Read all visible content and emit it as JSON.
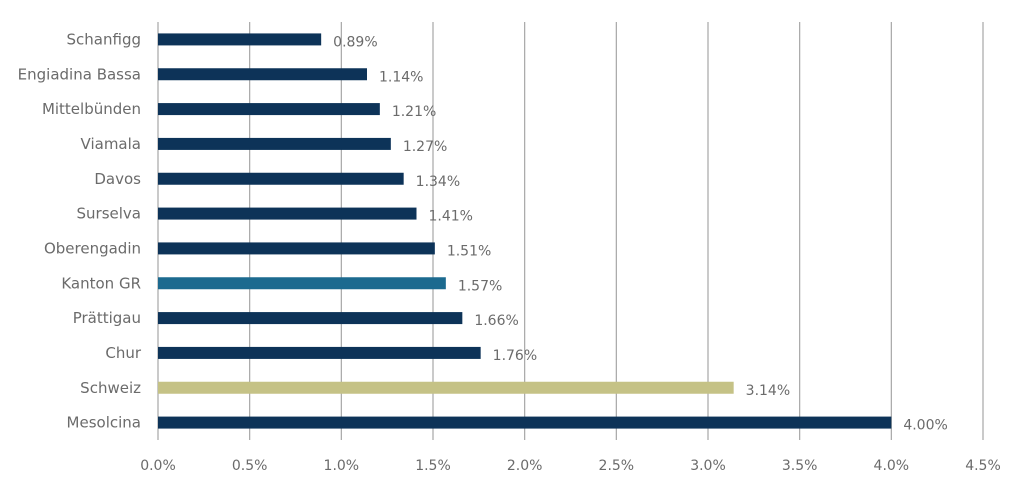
{
  "chart_data": {
    "type": "bar",
    "orientation": "horizontal",
    "categories": [
      "Schanfigg",
      "Engiadina Bassa",
      "Mittelbünden",
      "Viamala",
      "Davos",
      "Surselva",
      "Oberengadin",
      "Kanton GR",
      "Prättigau",
      "Chur",
      "Schweiz",
      "Mesolcina"
    ],
    "values": [
      0.89,
      1.14,
      1.21,
      1.27,
      1.34,
      1.41,
      1.51,
      1.57,
      1.66,
      1.76,
      3.14,
      4.0
    ],
    "value_labels": [
      "0.89%",
      "1.14%",
      "1.21%",
      "1.27%",
      "1.34%",
      "1.41%",
      "1.51%",
      "1.57%",
      "1.66%",
      "1.76%",
      "3.14%",
      "4.00%"
    ],
    "bar_colors": [
      "#0d3358",
      "#0d3358",
      "#0d3358",
      "#0d3358",
      "#0d3358",
      "#0d3358",
      "#0d3358",
      "#1c6a8f",
      "#0d3358",
      "#0d3358",
      "#c5c286",
      "#0d3358"
    ],
    "x_ticks": [
      0,
      0.5,
      1.0,
      1.5,
      2.0,
      2.5,
      3.0,
      3.5,
      4.0,
      4.5
    ],
    "x_tick_labels": [
      "0.0%",
      "0.5%",
      "1.0%",
      "1.5%",
      "2.0%",
      "2.5%",
      "3.0%",
      "3.5%",
      "4.0%",
      "4.5%"
    ],
    "xlim": [
      0,
      4.5
    ],
    "title": "",
    "xlabel": "",
    "ylabel": "",
    "grid": "vertical",
    "legend": "none",
    "colors": {
      "gridline": "#a6a6a6",
      "text": "#6b6b6b"
    }
  }
}
